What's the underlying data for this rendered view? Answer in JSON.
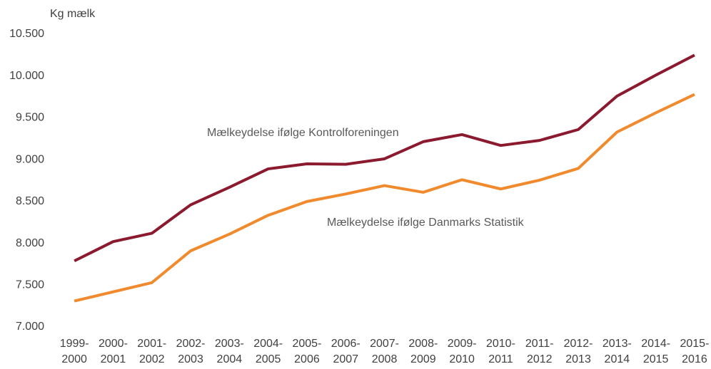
{
  "chart_data": {
    "type": "line",
    "y_label": "Kg mælk",
    "categories": [
      [
        "1999-",
        "2000"
      ],
      [
        "2000-",
        "2001"
      ],
      [
        "2001-",
        "2002"
      ],
      [
        "2002-",
        "2003"
      ],
      [
        "2003-",
        "2004"
      ],
      [
        "2004-",
        "2005"
      ],
      [
        "2005-",
        "2006"
      ],
      [
        "2006-",
        "2007"
      ],
      [
        "2007-",
        "2008"
      ],
      [
        "2008-",
        "2009"
      ],
      [
        "2009-",
        "2010"
      ],
      [
        "2010-",
        "2011"
      ],
      [
        "2011-",
        "2012"
      ],
      [
        "2012-",
        "2013"
      ],
      [
        "2013-",
        "2014"
      ],
      [
        "2014-",
        "2015"
      ],
      [
        "2015-",
        "2016"
      ]
    ],
    "series": [
      {
        "name": "Mælkeydelse ifølge Kontrolforeningen",
        "color": "#8b1a2f",
        "values": [
          7790,
          8020,
          8120,
          8460,
          8670,
          8890,
          8950,
          8945,
          9010,
          9215,
          9300,
          9170,
          9230,
          9360,
          9760,
          10010,
          10250
        ]
      },
      {
        "name": "Mælkeydelse ifølge Danmarks Statistik",
        "color": "#f08a2c",
        "values": [
          7310,
          7420,
          7530,
          7910,
          8110,
          8335,
          8500,
          8590,
          8690,
          8610,
          8760,
          8650,
          8755,
          8895,
          9330,
          9560,
          9780
        ]
      }
    ],
    "ylim": [
      7000,
      10500
    ],
    "yticks": [
      {
        "value": 7000,
        "label": "7.000"
      },
      {
        "value": 7500,
        "label": "7.500"
      },
      {
        "value": 8000,
        "label": "8.000"
      },
      {
        "value": 8500,
        "label": "8.500"
      },
      {
        "value": 9000,
        "label": "9.000"
      },
      {
        "value": 9500,
        "label": "9.500"
      },
      {
        "value": 10000,
        "label": "10.000"
      },
      {
        "value": 10500,
        "label": "10.500"
      }
    ],
    "grid": false
  }
}
